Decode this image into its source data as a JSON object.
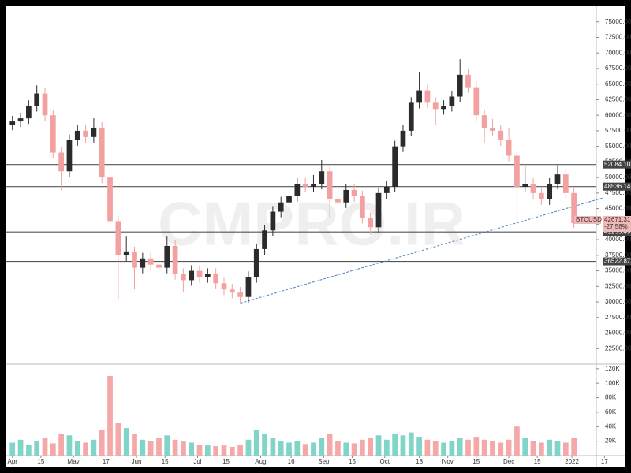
{
  "chart_data": {
    "type": "candlestick",
    "symbol": "BTCUSD",
    "change_label": "-27.58%",
    "watermark": "CMPRO.IR",
    "up_color": "#2b2b2b",
    "down_color": "#f2a0a0",
    "volume_up_color": "#80d4c8",
    "volume_down_color": "#f4a8a8",
    "x": [
      0,
      4,
      8,
      12,
      16,
      20,
      24,
      28,
      32,
      36,
      40,
      44,
      48,
      52,
      56,
      60,
      64,
      68,
      72,
      76,
      80,
      84,
      88,
      92,
      96,
      100,
      104,
      108,
      112,
      116,
      120,
      124,
      128,
      132,
      136,
      140,
      144,
      148,
      152,
      156,
      160,
      164,
      168,
      172,
      176,
      180,
      184,
      188,
      192,
      196,
      200,
      204,
      208,
      212,
      216,
      220,
      224,
      228,
      232,
      236,
      240,
      244,
      248,
      252,
      256,
      260,
      264,
      268,
      272,
      276
    ],
    "open": [
      58500,
      59000,
      59500,
      61500,
      63500,
      60000,
      54000,
      51000,
      56000,
      57500,
      56500,
      58000,
      50000,
      43000,
      37500,
      38000,
      35500,
      37000,
      36000,
      35500,
      39000,
      34500,
      33500,
      35000,
      34000,
      34500,
      33000,
      32000,
      31500,
      30800,
      34000,
      38500,
      41500,
      44500,
      46000,
      47000,
      49000,
      48500,
      49000,
      51000,
      46500,
      46000,
      48000,
      47000,
      43500,
      42000,
      47500,
      48500,
      55000,
      57500,
      62000,
      64000,
      62000,
      61000,
      61500,
      63000,
      66500,
      64500,
      60000,
      58000,
      57500,
      56000,
      53500,
      48500,
      49000,
      47500,
      46500,
      49000,
      50500,
      47500
    ],
    "high": [
      59900,
      60400,
      62400,
      64800,
      64400,
      60900,
      54900,
      56900,
      58400,
      58400,
      59500,
      58900,
      50900,
      43900,
      40500,
      38900,
      37900,
      37900,
      36900,
      40500,
      39900,
      35400,
      35900,
      35900,
      35400,
      35400,
      33900,
      32900,
      32400,
      34900,
      39400,
      42400,
      45400,
      46900,
      47900,
      49900,
      49900,
      50400,
      52800,
      51900,
      47400,
      48900,
      48900,
      47900,
      44400,
      48400,
      49400,
      55900,
      58400,
      62900,
      67000,
      64900,
      62900,
      62400,
      63900,
      69000,
      67400,
      65400,
      60900,
      59400,
      58400,
      57900,
      54400,
      51900,
      49900,
      48400,
      49900,
      52000,
      51400,
      48400
    ],
    "low": [
      57600,
      58100,
      58600,
      60600,
      59100,
      53100,
      48000,
      50100,
      55100,
      55600,
      55600,
      49100,
      42100,
      30500,
      36600,
      32000,
      34600,
      35100,
      34600,
      34600,
      33600,
      31500,
      32600,
      33100,
      33100,
      32100,
      31100,
      30600,
      29800,
      29900,
      33100,
      37600,
      40600,
      43600,
      45100,
      46100,
      47600,
      47600,
      48100,
      43500,
      45100,
      45100,
      46100,
      42600,
      40800,
      41100,
      46600,
      47600,
      54100,
      56600,
      61100,
      61100,
      58500,
      60100,
      60600,
      62100,
      63600,
      59100,
      55600,
      56600,
      55100,
      52600,
      42000,
      47600,
      46600,
      45600,
      45600,
      48100,
      46600,
      41900
    ],
    "close": [
      59000,
      59500,
      61500,
      63500,
      60000,
      54000,
      51000,
      56000,
      57500,
      56500,
      58000,
      50000,
      43000,
      37500,
      38000,
      35500,
      37000,
      36000,
      35500,
      39000,
      34500,
      33500,
      35000,
      34000,
      34500,
      33000,
      32000,
      31500,
      30800,
      34000,
      38500,
      41500,
      44500,
      46000,
      47000,
      49000,
      48500,
      49000,
      51000,
      46500,
      46000,
      48000,
      47000,
      43500,
      42000,
      47500,
      48500,
      55000,
      57500,
      62000,
      64000,
      62000,
      61000,
      61500,
      63000,
      66500,
      64500,
      60000,
      58000,
      57500,
      56000,
      53500,
      48500,
      49000,
      47500,
      46500,
      49000,
      50500,
      47500,
      42671.31
    ],
    "volume": [
      18000,
      22000,
      15000,
      20000,
      25000,
      17000,
      30000,
      28000,
      20000,
      18000,
      22000,
      35000,
      110000,
      45000,
      38000,
      30000,
      22000,
      20000,
      25000,
      28000,
      22000,
      20000,
      18000,
      15000,
      14000,
      13000,
      14000,
      12000,
      15000,
      22000,
      35000,
      30000,
      25000,
      20000,
      18000,
      20000,
      16000,
      18000,
      25000,
      30000,
      20000,
      18000,
      17000,
      22000,
      25000,
      28000,
      22000,
      30000,
      28000,
      32000,
      26000,
      22000,
      20000,
      18000,
      20000,
      24000,
      22000,
      26000,
      22000,
      20000,
      18000,
      22000,
      40000,
      25000,
      20000,
      18000,
      22000,
      20000,
      18000,
      24000
    ],
    "xlim": [
      -3,
      287
    ],
    "xticks": [
      {
        "value": 0,
        "label": "Apr"
      },
      {
        "value": 14,
        "label": "15"
      },
      {
        "value": 30,
        "label": "May"
      },
      {
        "value": 46,
        "label": "17"
      },
      {
        "value": 61,
        "label": "Jun"
      },
      {
        "value": 75,
        "label": "15"
      },
      {
        "value": 91,
        "label": "Jul"
      },
      {
        "value": 105,
        "label": "15"
      },
      {
        "value": 122,
        "label": "Aug"
      },
      {
        "value": 137,
        "label": "16"
      },
      {
        "value": 153,
        "label": "Sep"
      },
      {
        "value": 167,
        "label": "15"
      },
      {
        "value": 183,
        "label": "Oct"
      },
      {
        "value": 200,
        "label": "18"
      },
      {
        "value": 214,
        "label": "Nov"
      },
      {
        "value": 228,
        "label": "15"
      },
      {
        "value": 244,
        "label": "Dec"
      },
      {
        "value": 258,
        "label": "15"
      },
      {
        "value": 275,
        "label": "2022"
      },
      {
        "value": 291,
        "label": "17"
      }
    ],
    "ylim": [
      20000,
      77500
    ],
    "yticks": [
      {
        "value": 22500,
        "label": "22500.00"
      },
      {
        "value": 25000,
        "label": "25000.00"
      },
      {
        "value": 27500,
        "label": "27500.00"
      },
      {
        "value": 30000,
        "label": "30000.00"
      },
      {
        "value": 32500,
        "label": "32500.00"
      },
      {
        "value": 35000,
        "label": "35000.00"
      },
      {
        "value": 37500,
        "label": "37500.00"
      },
      {
        "value": 40000,
        "label": "40000.00"
      },
      {
        "value": 42500,
        "label": "42500.00"
      },
      {
        "value": 45000,
        "label": "45000.00"
      },
      {
        "value": 47500,
        "label": "47500.00"
      },
      {
        "value": 50000,
        "label": "50000.00"
      },
      {
        "value": 52500,
        "label": "52500.00"
      },
      {
        "value": 55000,
        "label": "55000.00"
      },
      {
        "value": 57500,
        "label": "57500.00"
      },
      {
        "value": 60000,
        "label": "60000.00"
      },
      {
        "value": 62500,
        "label": "62500.00"
      },
      {
        "value": 65000,
        "label": "65000.00"
      },
      {
        "value": 67500,
        "label": "67500.00"
      },
      {
        "value": 70000,
        "label": "70000.00"
      },
      {
        "value": 72500,
        "label": "72500.00"
      },
      {
        "value": 75000,
        "label": "75000.00"
      }
    ],
    "vlim": [
      0,
      122000
    ],
    "vticks": [
      {
        "value": 20000,
        "label": "20K"
      },
      {
        "value": 40000,
        "label": "40K"
      },
      {
        "value": 60000,
        "label": "60K"
      },
      {
        "value": 80000,
        "label": "80K"
      },
      {
        "value": 100000,
        "label": "100K"
      },
      {
        "value": 120000,
        "label": "120K"
      }
    ],
    "levels": [
      {
        "value": 52084.1,
        "label": "52084.10"
      },
      {
        "value": 48536.14,
        "label": "48536.14"
      },
      {
        "value": 41253.49,
        "label": "41253.49"
      },
      {
        "value": 36522.87,
        "label": "36522.87"
      }
    ],
    "trendline": {
      "x": [
        112,
        290
      ],
      "y": [
        29800,
        46700
      ]
    }
  }
}
